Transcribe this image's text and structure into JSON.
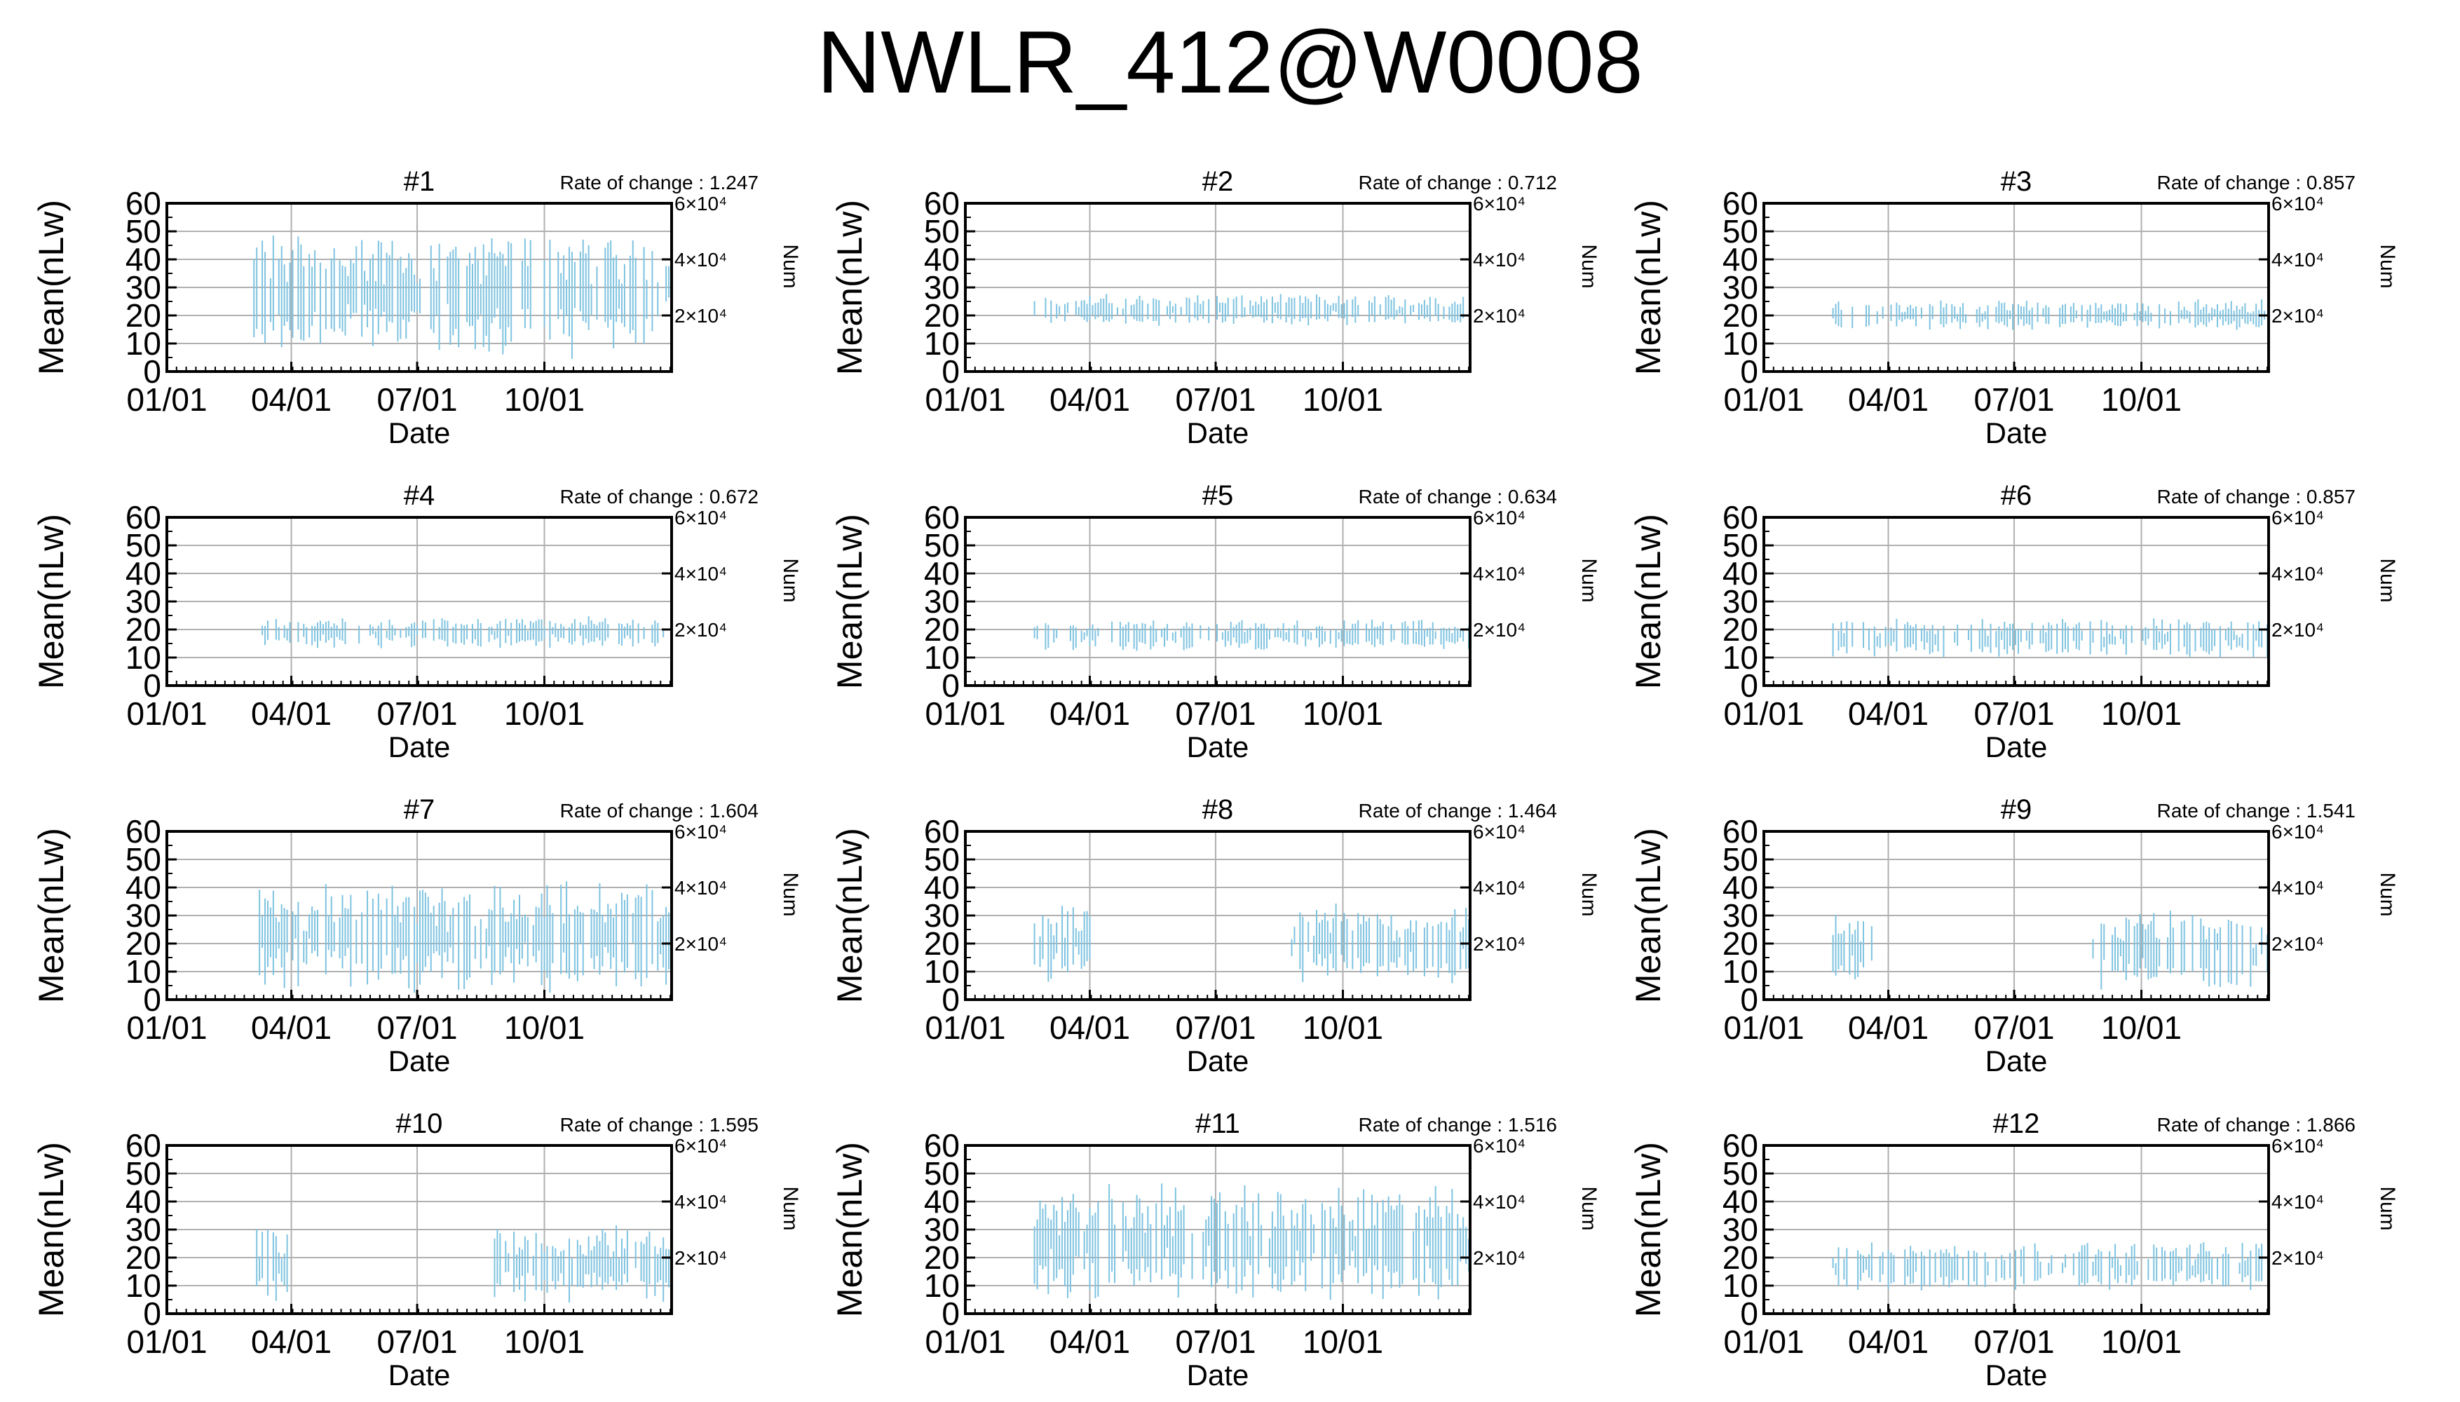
{
  "title": "NWLR_412@W0008",
  "colors": {
    "series": "#7ec3e0",
    "axis": "#000000",
    "grid": "#b0b0b0"
  },
  "common": {
    "xlabel": "Date",
    "ylabel": "Mean(nLw)",
    "y2label": "Num",
    "xticks": [
      "01/01",
      "04/01",
      "07/01",
      "10/01"
    ],
    "yticks": [
      "0",
      "10",
      "20",
      "30",
      "40",
      "50",
      "60"
    ],
    "y2ticks": [
      "2×10⁴",
      "4×10⁴",
      "6×10⁴"
    ],
    "rate_prefix": "Rate of change : "
  },
  "chart_data": [
    {
      "type": "errorbar",
      "title": "#1",
      "rate": "1.247",
      "ylim": [
        0,
        60
      ],
      "xlim": [
        "01/01",
        "12/31"
      ],
      "dates": [
        "03/05",
        "12/31"
      ],
      "mean_center": 28,
      "spread": 16,
      "grid": true
    },
    {
      "type": "errorbar",
      "title": "#2",
      "rate": "0.712",
      "ylim": [
        0,
        60
      ],
      "xlim": [
        "01/01",
        "12/31"
      ],
      "dates": [
        "02/20",
        "12/31"
      ],
      "mean_center": 22,
      "spread": 4,
      "grid": true
    },
    {
      "type": "errorbar",
      "title": "#3",
      "rate": "0.857",
      "ylim": [
        0,
        60
      ],
      "xlim": [
        "01/01",
        "12/31"
      ],
      "dates": [
        "02/20",
        "12/31"
      ],
      "mean_center": 20,
      "spread": 4,
      "grid": true
    },
    {
      "type": "errorbar",
      "title": "#4",
      "rate": "0.672",
      "ylim": [
        0,
        60
      ],
      "xlim": [
        "01/01",
        "12/31"
      ],
      "dates": [
        "03/05",
        "12/31"
      ],
      "mean_center": 19,
      "spread": 4,
      "grid": true
    },
    {
      "type": "errorbar",
      "title": "#5",
      "rate": "0.634",
      "ylim": [
        0,
        60
      ],
      "xlim": [
        "01/01",
        "12/31"
      ],
      "dates": [
        "02/20",
        "12/31"
      ],
      "mean_center": 18,
      "spread": 4,
      "grid": true
    },
    {
      "type": "errorbar",
      "title": "#6",
      "rate": "0.857",
      "ylim": [
        0,
        60
      ],
      "xlim": [
        "01/01",
        "12/31"
      ],
      "dates": [
        "02/20",
        "12/31"
      ],
      "mean_center": 17,
      "spread": 5,
      "grid": true
    },
    {
      "type": "errorbar",
      "title": "#7",
      "rate": "1.604",
      "ylim": [
        0,
        60
      ],
      "xlim": [
        "01/01",
        "12/31"
      ],
      "dates": [
        "03/05",
        "12/31"
      ],
      "mean_center": 22,
      "spread": 14,
      "grid": true
    },
    {
      "type": "errorbar",
      "title": "#8",
      "rate": "1.464",
      "ylim": [
        0,
        60
      ],
      "xlim": [
        "01/01",
        "12/31"
      ],
      "dates": [
        "02/20",
        "12/31"
      ],
      "mean_center": 20,
      "spread": 10,
      "grid": true,
      "gap": [
        "04/01",
        "08/25"
      ]
    },
    {
      "type": "errorbar",
      "title": "#9",
      "rate": "1.541",
      "ylim": [
        0,
        60
      ],
      "xlim": [
        "01/01",
        "12/31"
      ],
      "dates": [
        "02/20",
        "12/31"
      ],
      "mean_center": 18,
      "spread": 10,
      "grid": true,
      "gap": [
        "03/20",
        "08/25"
      ]
    },
    {
      "type": "errorbar",
      "title": "#10",
      "rate": "1.595",
      "ylim": [
        0,
        60
      ],
      "xlim": [
        "01/01",
        "12/31"
      ],
      "dates": [
        "03/05",
        "12/31"
      ],
      "mean_center": 18,
      "spread": 10,
      "grid": true,
      "gap": [
        "03/30",
        "08/25"
      ]
    },
    {
      "type": "errorbar",
      "title": "#11",
      "rate": "1.516",
      "ylim": [
        0,
        60
      ],
      "xlim": [
        "01/01",
        "12/31"
      ],
      "dates": [
        "02/20",
        "12/31"
      ],
      "mean_center": 25,
      "spread": 15,
      "grid": true
    },
    {
      "type": "errorbar",
      "title": "#12",
      "rate": "1.866",
      "ylim": [
        0,
        60
      ],
      "xlim": [
        "01/01",
        "12/31"
      ],
      "dates": [
        "02/20",
        "12/31"
      ],
      "mean_center": 17,
      "spread": 6,
      "grid": true
    }
  ]
}
